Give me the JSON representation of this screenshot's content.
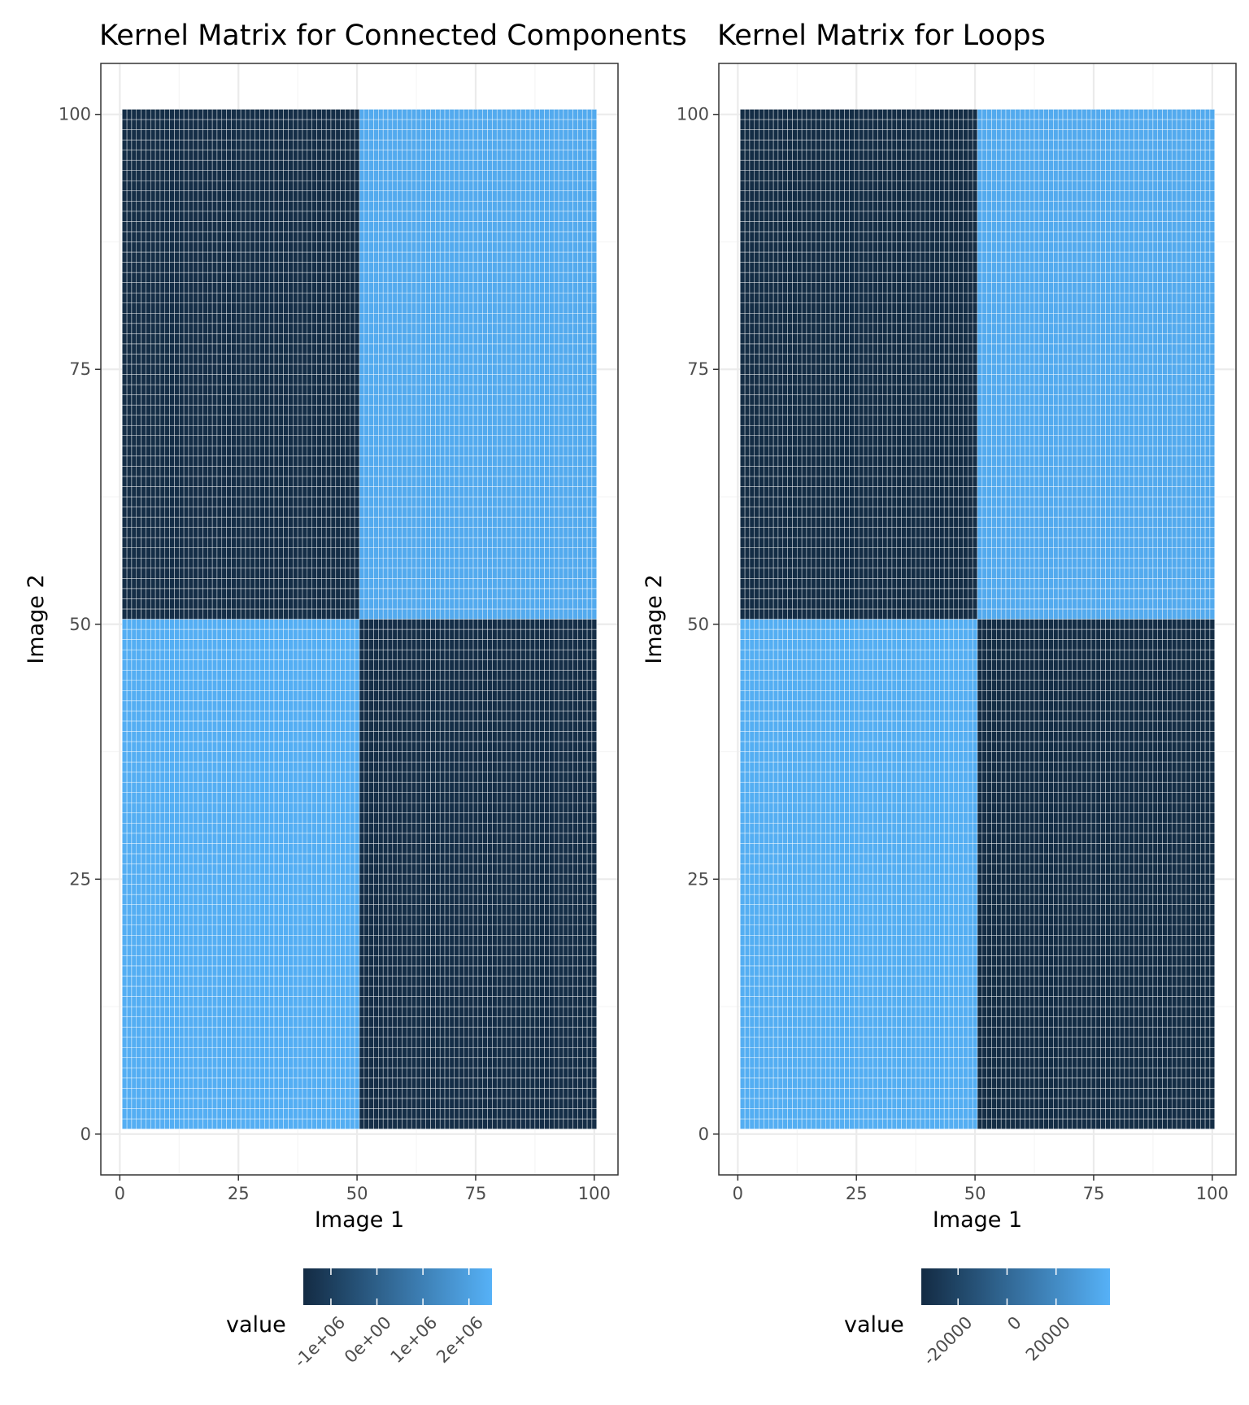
{
  "chart_data": [
    {
      "type": "heatmap",
      "title": "Kernel Matrix for Connected Components",
      "xlabel": "Image 1",
      "ylabel": "Image 2",
      "xlim": [
        -4,
        105
      ],
      "ylim": [
        -4,
        105
      ],
      "x_ticks": [
        0,
        25,
        50,
        75,
        100
      ],
      "y_ticks": [
        0,
        25,
        50,
        75,
        100
      ],
      "x_tick_labels": [
        "0",
        "25",
        "50",
        "75",
        "100"
      ],
      "y_tick_labels": [
        "0",
        "25",
        "50",
        "75",
        "100"
      ],
      "grid": true,
      "n_cells": 100,
      "cell_border_color": "#ffffff",
      "blocks": [
        {
          "x_range": [
            1,
            50
          ],
          "y_range": [
            1,
            50
          ],
          "value": 2400000
        },
        {
          "x_range": [
            51,
            100
          ],
          "y_range": [
            1,
            50
          ],
          "value": -1500000
        },
        {
          "x_range": [
            1,
            50
          ],
          "y_range": [
            51,
            100
          ],
          "value": -1500000
        },
        {
          "x_range": [
            51,
            100
          ],
          "y_range": [
            51,
            100
          ],
          "value": 2300000
        }
      ],
      "legend": {
        "title": "value",
        "position": "bottom",
        "min": -1600000,
        "max": 2500000,
        "breaks": [
          -1000000,
          0,
          1000000,
          2000000
        ],
        "break_labels": [
          "-1e+06",
          "0e+00",
          "1e+06",
          "2e+06"
        ],
        "low_color": "#132b43",
        "high_color": "#56b1f7"
      }
    },
    {
      "type": "heatmap",
      "title": "Kernel Matrix for Loops",
      "xlabel": "Image 1",
      "ylabel": "Image 2",
      "xlim": [
        -4,
        105
      ],
      "ylim": [
        -4,
        105
      ],
      "x_ticks": [
        0,
        25,
        50,
        75,
        100
      ],
      "y_ticks": [
        0,
        25,
        50,
        75,
        100
      ],
      "x_tick_labels": [
        "0",
        "25",
        "50",
        "75",
        "100"
      ],
      "y_tick_labels": [
        "0",
        "25",
        "50",
        "75",
        "100"
      ],
      "grid": true,
      "n_cells": 100,
      "cell_border_color": "#ffffff",
      "blocks": [
        {
          "x_range": [
            1,
            50
          ],
          "y_range": [
            1,
            50
          ],
          "value": 40000
        },
        {
          "x_range": [
            51,
            100
          ],
          "y_range": [
            1,
            50
          ],
          "value": -34000
        },
        {
          "x_range": [
            1,
            50
          ],
          "y_range": [
            51,
            100
          ],
          "value": -34000
        },
        {
          "x_range": [
            51,
            100
          ],
          "y_range": [
            51,
            100
          ],
          "value": 38000
        }
      ],
      "legend": {
        "title": "value",
        "position": "bottom",
        "min": -35000,
        "max": 42000,
        "breaks": [
          -20000,
          0,
          20000
        ],
        "break_labels": [
          "-20000",
          "0",
          "20000"
        ],
        "low_color": "#132b43",
        "high_color": "#56b1f7"
      }
    }
  ],
  "colors": {
    "panel_border": "#333333",
    "grid_major": "#ebebeb",
    "grid_minor": "#f5f5f5",
    "tick_text": "#4d4d4d"
  }
}
